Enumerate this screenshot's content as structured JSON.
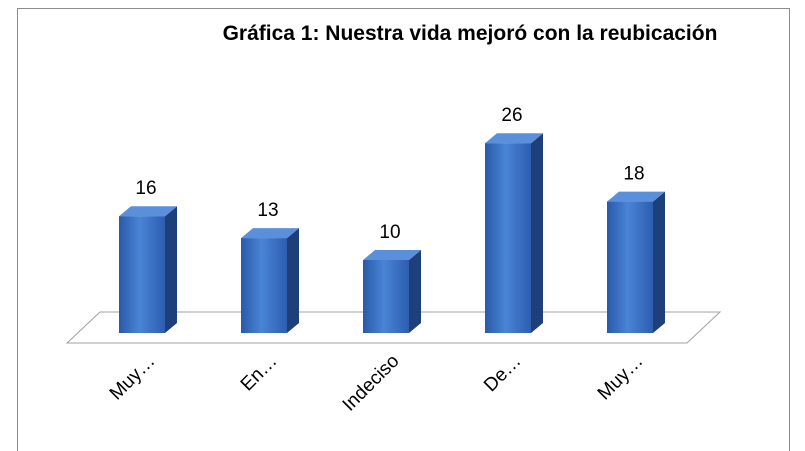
{
  "chart_data": {
    "type": "bar3d",
    "title": "Gráfica 1: Nuestra vida mejoró con la reubicación",
    "categories": [
      "Muy…",
      "En…",
      "Indeciso",
      "De…",
      "Muy…"
    ],
    "values": [
      16,
      13,
      10,
      26,
      18
    ],
    "color": "#3a6fc0"
  }
}
